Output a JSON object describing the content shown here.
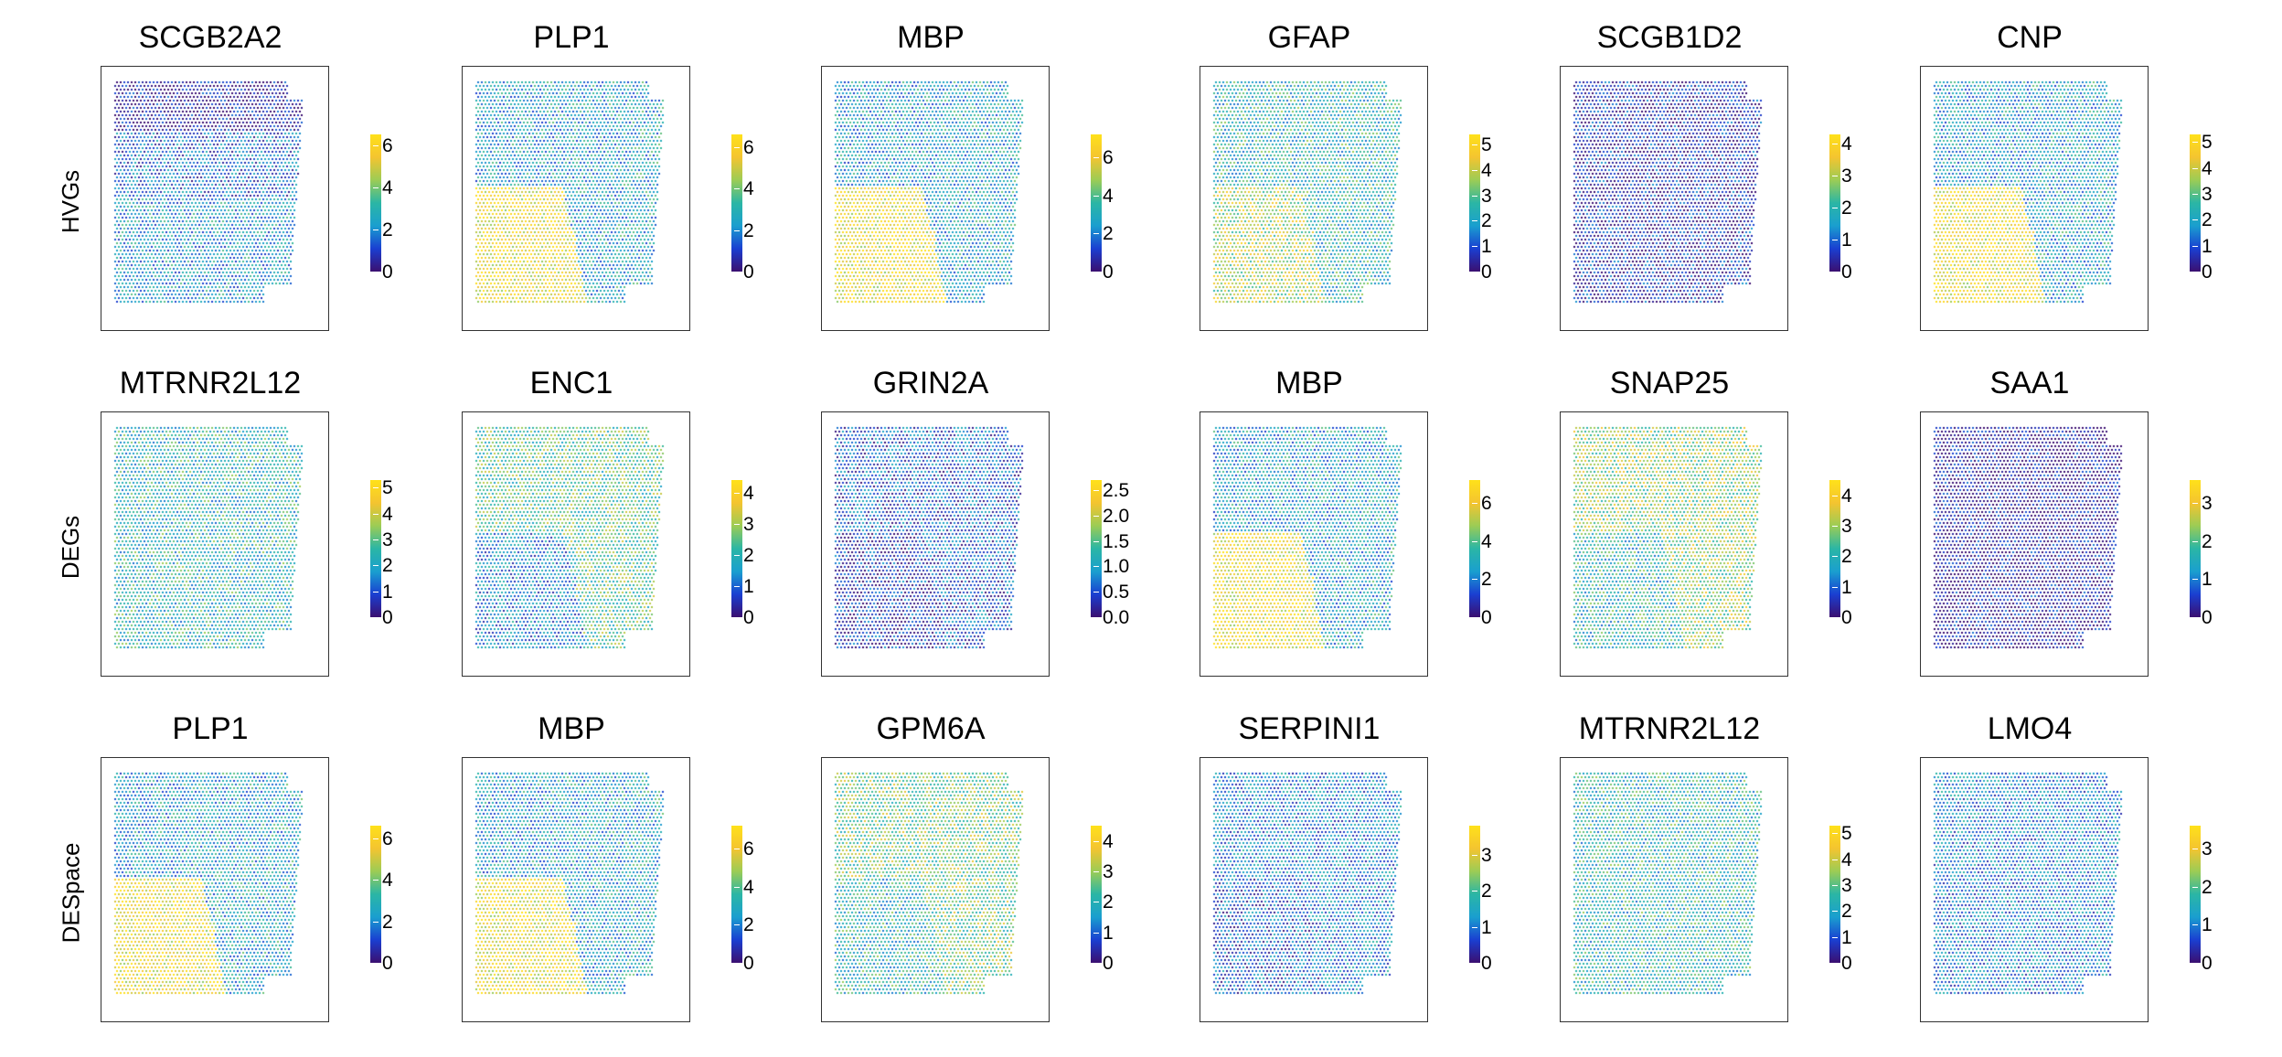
{
  "chart_data": {
    "type": "spatial-scatter-grid",
    "colormap": [
      "#3b0f70",
      "#1a3fd1",
      "#1a9fcf",
      "#2bb6a5",
      "#9ccc55",
      "#f4c430",
      "#ffe11a"
    ],
    "rows": [
      {
        "label": "HVGs",
        "panels": [
          {
            "title": "SCGB2A2",
            "ticks": [
              "0",
              "2",
              "4",
              "6"
            ],
            "max": 6.5
          },
          {
            "title": "PLP1",
            "ticks": [
              "0",
              "2",
              "4",
              "6"
            ],
            "max": 6.6
          },
          {
            "title": "MBP",
            "ticks": [
              "0",
              "2",
              "4",
              "6"
            ],
            "max": 7.2
          },
          {
            "title": "GFAP",
            "ticks": [
              "0",
              "1",
              "2",
              "3",
              "4",
              "5"
            ],
            "max": 5.4
          },
          {
            "title": "SCGB1D2",
            "ticks": [
              "0",
              "1",
              "2",
              "3",
              "4"
            ],
            "max": 4.3
          },
          {
            "title": "CNP",
            "ticks": [
              "0",
              "1",
              "2",
              "3",
              "4",
              "5"
            ],
            "max": 5.3
          }
        ]
      },
      {
        "label": "DEGs",
        "panels": [
          {
            "title": "MTRNR2L12",
            "ticks": [
              "0",
              "1",
              "2",
              "3",
              "4",
              "5"
            ],
            "max": 5.3
          },
          {
            "title": "ENC1",
            "ticks": [
              "0",
              "1",
              "2",
              "3",
              "4"
            ],
            "max": 4.4
          },
          {
            "title": "GRIN2A",
            "ticks": [
              "0.0",
              "0.5",
              "1.0",
              "1.5",
              "2.0",
              "2.5"
            ],
            "max": 2.7
          },
          {
            "title": "MBP",
            "ticks": [
              "0",
              "2",
              "4",
              "6"
            ],
            "max": 7.2
          },
          {
            "title": "SNAP25",
            "ticks": [
              "0",
              "1",
              "2",
              "3",
              "4"
            ],
            "max": 4.5
          },
          {
            "title": "SAA1",
            "ticks": [
              "0",
              "1",
              "2",
              "3"
            ],
            "max": 3.6
          }
        ]
      },
      {
        "label": "DESpace",
        "panels": [
          {
            "title": "PLP1",
            "ticks": [
              "0",
              "2",
              "4",
              "6"
            ],
            "max": 6.6
          },
          {
            "title": "MBP",
            "ticks": [
              "0",
              "2",
              "4",
              "6"
            ],
            "max": 7.2
          },
          {
            "title": "GPM6A",
            "ticks": [
              "0",
              "1",
              "2",
              "3",
              "4"
            ],
            "max": 4.5
          },
          {
            "title": "SERPINI1",
            "ticks": [
              "0",
              "1",
              "2",
              "3"
            ],
            "max": 3.8
          },
          {
            "title": "MTRNR2L12",
            "ticks": [
              "0",
              "1",
              "2",
              "3",
              "4",
              "5"
            ],
            "max": 5.3
          },
          {
            "title": "LMO4",
            "ticks": [
              "0",
              "1",
              "2",
              "3"
            ],
            "max": 3.6
          }
        ]
      }
    ]
  }
}
